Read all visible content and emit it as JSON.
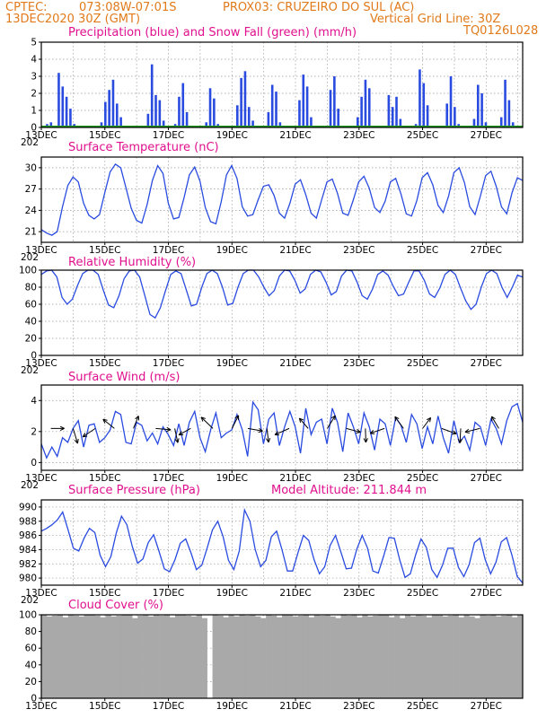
{
  "header": {
    "line1_left": "CPTEC:",
    "line1_coords": "073:08W-07:01S",
    "line1_station": "PROX03: CRUZEIRO DO SUL (AC)",
    "line2_left": "13DEC2020 30Z (GMT)",
    "line2_grid": "Vertical Grid Line: 30Z",
    "line2_code": "TQ0126L028"
  },
  "colors": {
    "header": "#e07a1a",
    "title": "#e0108e",
    "precip": "#2a4be0",
    "snow": "#1e9a1e",
    "line": "#2a4be0",
    "cloud": "#a9a9a9"
  },
  "x_axis": {
    "labels": [
      "13DEC",
      "15DEC",
      "17DEC",
      "19DEC",
      "21DEC",
      "23DEC",
      "25DEC",
      "27DEC"
    ],
    "cut_label": "202"
  },
  "chart_data": [
    {
      "id": "precip",
      "type": "bar",
      "title": "Precipitation (blue) and Snow Fall (green) (mm/h)",
      "ylim": [
        0,
        5
      ],
      "yticks": [
        0,
        1,
        2,
        3,
        4,
        5
      ],
      "grid": true,
      "series": [
        {
          "name": "Precipitation",
          "values": [
            0.1,
            0.2,
            0.3,
            0.0,
            3.2,
            2.4,
            1.8,
            1.1,
            0.2,
            0.0,
            0.0,
            0.0,
            0.1,
            0.0,
            0.0,
            0.3,
            1.5,
            2.2,
            2.8,
            1.4,
            0.6,
            0.1,
            0.0,
            0.0,
            0.0,
            0.0,
            0.1,
            0.8,
            3.7,
            1.9,
            1.6,
            0.4,
            0.0,
            0.0,
            0.2,
            1.8,
            2.6,
            0.9,
            0.1,
            0.0,
            0.0,
            0.0,
            0.3,
            2.3,
            1.7,
            0.2,
            0.0,
            0.0,
            0.0,
            0.0,
            1.3,
            2.9,
            3.3,
            1.2,
            0.4,
            0.0,
            0.0,
            0.0,
            0.9,
            2.5,
            2.1,
            0.3,
            0.0,
            0.0,
            0.0,
            0.0,
            1.6,
            3.1,
            2.4,
            0.6,
            0.0,
            0.0,
            0.0,
            0.0,
            2.2,
            3.0,
            1.1,
            0.0,
            0.0,
            0.0,
            0.0,
            0.6,
            1.8,
            2.8,
            2.3,
            0.1,
            0.0,
            0.0,
            0.0,
            1.9,
            1.2,
            1.8,
            0.5,
            0.0,
            0.0,
            0.0,
            0.2,
            3.4,
            2.6,
            1.3,
            0.1,
            0.0,
            0.0,
            0.0,
            1.4,
            3.0,
            1.2,
            0.2,
            0.0,
            0.0,
            0.0,
            0.5,
            2.5,
            2.0,
            0.3,
            0.0,
            0.0,
            0.0,
            0.6,
            2.8,
            1.6,
            0.3,
            0.0,
            0.0
          ]
        },
        {
          "name": "Snow Fall",
          "values": [
            0
          ]
        }
      ]
    },
    {
      "id": "temp",
      "type": "line",
      "title": "Surface Temperature (nC)",
      "ylim": [
        19.5,
        31.5
      ],
      "yticks": [
        21,
        24,
        27,
        30
      ],
      "grid": true,
      "series": [
        {
          "name": "Surface Temperature",
          "values": [
            21.3,
            20.8,
            20.5,
            21.0,
            24.5,
            27.5,
            28.7,
            28.0,
            25.0,
            23.3,
            22.8,
            23.4,
            26.5,
            29.4,
            30.5,
            30.0,
            27.2,
            24.3,
            22.6,
            22.2,
            24.8,
            28.2,
            30.3,
            29.2,
            25.0,
            22.8,
            23.0,
            25.8,
            29.0,
            30.1,
            28.1,
            24.4,
            22.4,
            22.1,
            25.2,
            29.0,
            30.3,
            28.5,
            24.5,
            23.2,
            23.4,
            25.5,
            27.4,
            27.6,
            26.1,
            23.6,
            22.9,
            25.0,
            27.7,
            28.3,
            26.2,
            23.6,
            22.9,
            25.5,
            28.0,
            28.4,
            26.4,
            23.6,
            23.3,
            25.5,
            28.0,
            28.8,
            27.1,
            24.4,
            23.7,
            25.3,
            28.0,
            28.5,
            26.3,
            23.5,
            23.2,
            25.4,
            28.6,
            29.3,
            27.6,
            24.7,
            23.7,
            26.0,
            29.3,
            30.0,
            27.9,
            24.5,
            23.4,
            26.0,
            28.9,
            29.5,
            27.4,
            24.5,
            23.5,
            26.5,
            28.6,
            28.2
          ]
        }
      ]
    },
    {
      "id": "rh",
      "type": "line",
      "title": "Relative Humidity (%)",
      "ylim": [
        0,
        100
      ],
      "yticks": [
        0,
        20,
        40,
        60,
        80,
        100
      ],
      "grid": true,
      "series": [
        {
          "name": "Relative Humidity",
          "values": [
            95,
            99,
            100,
            92,
            68,
            60,
            66,
            82,
            96,
            100,
            100,
            95,
            76,
            59,
            56,
            70,
            90,
            99,
            100,
            92,
            70,
            48,
            44,
            56,
            76,
            95,
            99,
            96,
            77,
            58,
            60,
            80,
            96,
            100,
            96,
            80,
            59,
            61,
            80,
            96,
            100,
            100,
            92,
            80,
            70,
            76,
            93,
            100,
            99,
            88,
            73,
            78,
            95,
            100,
            98,
            86,
            71,
            75,
            93,
            100,
            99,
            86,
            70,
            66,
            78,
            95,
            99,
            94,
            81,
            70,
            72,
            86,
            99,
            99,
            88,
            72,
            68,
            79,
            95,
            100,
            95,
            79,
            64,
            54,
            60,
            80,
            96,
            100,
            96,
            80,
            68,
            80,
            94,
            92
          ]
        }
      ]
    },
    {
      "id": "wind",
      "type": "line",
      "title": "Surface Wind (m/s)",
      "ylim": [
        -0.5,
        5
      ],
      "yticks": [
        0,
        2,
        4
      ],
      "grid": true,
      "series": [
        {
          "name": "Surface Wind",
          "values": [
            1.2,
            0.3,
            1.0,
            0.4,
            1.6,
            1.3,
            2.2,
            2.7,
            1.0,
            2.4,
            2.5,
            1.3,
            1.6,
            2.1,
            3.3,
            3.1,
            1.3,
            1.2,
            2.6,
            2.4,
            1.4,
            1.9,
            1.2,
            2.3,
            1.8,
            1.1,
            2.5,
            1.1,
            2.6,
            3.3,
            1.6,
            0.7,
            2.1,
            3.2,
            1.6,
            1.9,
            2.1,
            3.1,
            2.1,
            0.4,
            3.9,
            3.4,
            1.2,
            2.8,
            3.2,
            1.1,
            2.3,
            3.3,
            2.3,
            0.6,
            3.5,
            1.8,
            2.6,
            2.8,
            1.2,
            3.5,
            2.6,
            0.7,
            3.2,
            2.3,
            1.2,
            3.2,
            2.3,
            0.8,
            2.8,
            2.5,
            1.1,
            2.9,
            2.4,
            1.3,
            3.1,
            2.5,
            0.9,
            2.3,
            1.2,
            3.0,
            1.6,
            0.6,
            2.7,
            1.3,
            1.7,
            0.8,
            2.6,
            2.3,
            1.1,
            2.8,
            2.2,
            1.2,
            2.7,
            3.6,
            3.8,
            2.6
          ]
        }
      ],
      "vectors": [
        {
          "day": 0.3,
          "mag": 1.0
        },
        {
          "day": 1.0,
          "mag": 1.4
        },
        {
          "day": 1.7,
          "mag": 1.3
        },
        {
          "day": 2.3,
          "mag": 1.2
        },
        {
          "day": 2.9,
          "mag": 1.0
        },
        {
          "day": 3.6,
          "mag": 1.3
        },
        {
          "day": 4.2,
          "mag": 1.2
        },
        {
          "day": 4.7,
          "mag": 1.0
        },
        {
          "day": 5.4,
          "mag": 1.5
        },
        {
          "day": 6.0,
          "mag": 1.2
        },
        {
          "day": 6.5,
          "mag": 1.3
        },
        {
          "day": 7.1,
          "mag": 1.1
        },
        {
          "day": 7.8,
          "mag": 1.4
        },
        {
          "day": 8.4,
          "mag": 1.0
        },
        {
          "day": 9.0,
          "mag": 1.3
        },
        {
          "day": 9.6,
          "mag": 1.2
        },
        {
          "day": 10.2,
          "mag": 1.1
        },
        {
          "day": 10.8,
          "mag": 1.3
        },
        {
          "day": 11.4,
          "mag": 1.2
        },
        {
          "day": 12.0,
          "mag": 1.0
        },
        {
          "day": 12.6,
          "mag": 1.4
        },
        {
          "day": 13.2,
          "mag": 1.2
        },
        {
          "day": 13.8,
          "mag": 1.3
        },
        {
          "day": 14.4,
          "mag": 1.1
        }
      ]
    },
    {
      "id": "pres",
      "type": "line",
      "title": "Surface Pressure (hPa)",
      "subtitle": "Model Altitude: 211.844  m",
      "ylim": [
        979,
        991
      ],
      "yticks": [
        980,
        982,
        984,
        986,
        988,
        990
      ],
      "grid": true,
      "series": [
        {
          "name": "Surface Pressure",
          "values": [
            986.6,
            987.0,
            987.5,
            988.2,
            989.3,
            986.8,
            984.2,
            983.8,
            985.6,
            987.0,
            986.4,
            983.2,
            981.6,
            983.0,
            986.3,
            988.7,
            987.5,
            984.5,
            982.1,
            982.7,
            985.0,
            986.1,
            983.8,
            981.3,
            980.9,
            982.6,
            984.9,
            985.5,
            983.5,
            981.2,
            981.8,
            984.2,
            986.8,
            988.0,
            985.8,
            982.5,
            981.2,
            983.8,
            989.6,
            988.0,
            984.0,
            981.6,
            982.5,
            985.8,
            986.6,
            984.0,
            981.0,
            981.0,
            983.6,
            986.0,
            985.3,
            982.6,
            980.6,
            981.6,
            984.6,
            986.0,
            983.7,
            981.3,
            981.4,
            984.1,
            986.0,
            984.2,
            981.0,
            980.7,
            983.1,
            985.7,
            985.6,
            982.6,
            980.1,
            980.6,
            983.3,
            985.5,
            984.3,
            981.2,
            980.1,
            981.8,
            984.2,
            984.2,
            981.5,
            980.2,
            981.9,
            985.0,
            985.6,
            982.6,
            980.6,
            982.2,
            985.1,
            985.7,
            983.2,
            980.2,
            979.3
          ]
        }
      ]
    },
    {
      "id": "cloud",
      "type": "area",
      "title": "Cloud Cover (%)",
      "ylim": [
        0,
        100
      ],
      "yticks": [
        0,
        20,
        40,
        60,
        80,
        100
      ],
      "grid": true,
      "series": [
        {
          "name": "Cloud Cover",
          "values": [
            100,
            98,
            99,
            100,
            97,
            100,
            99,
            98,
            100,
            100,
            99,
            97,
            100,
            98,
            99,
            100,
            100,
            96,
            99,
            100,
            98,
            100,
            99,
            100,
            97,
            100,
            100,
            99,
            98,
            100,
            96,
            0,
            100,
            99,
            97,
            100,
            98,
            100,
            99,
            100,
            98,
            96,
            100,
            99,
            97,
            100,
            100,
            98,
            99,
            100,
            97,
            100,
            99,
            100,
            98,
            96,
            100,
            99,
            100,
            97,
            100,
            98,
            99,
            100,
            100,
            97,
            99,
            96,
            100,
            98,
            100,
            99,
            97,
            100,
            100,
            98,
            99,
            100,
            97,
            100,
            98,
            96,
            100,
            99,
            100,
            98,
            99,
            100,
            97,
            100
          ]
        }
      ]
    }
  ]
}
